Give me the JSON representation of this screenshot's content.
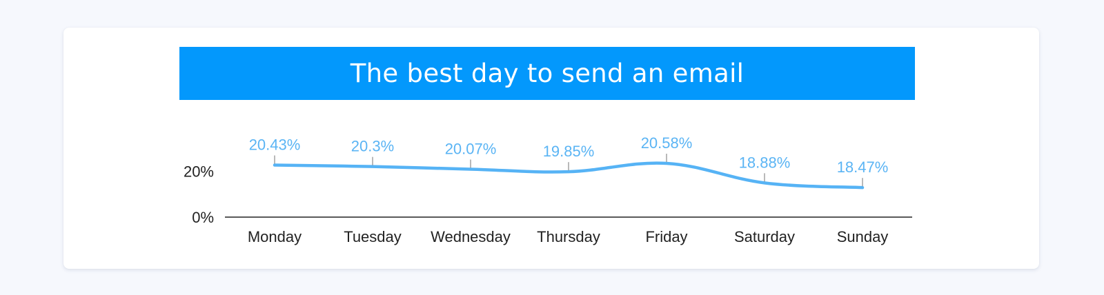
{
  "colors": {
    "banner": "#0398fc",
    "series": "#56b3f5",
    "label": "#5ab4f4",
    "axis": "#222222"
  },
  "chart_data": {
    "type": "line",
    "title": "The best day to send an email",
    "categories": [
      "Monday",
      "Tuesday",
      "Wednesday",
      "Thursday",
      "Friday",
      "Saturday",
      "Sunday"
    ],
    "series": [
      {
        "values": [
          20.43,
          20.3,
          20.07,
          19.85,
          20.58,
          18.88,
          18.47
        ],
        "data_labels": [
          "20.43%",
          "20.3%",
          "20.07%",
          "19.85%",
          "20.58%",
          "18.88%",
          "18.47%"
        ]
      }
    ],
    "y_tick_labels": [
      "0%",
      "20%"
    ],
    "grid": false,
    "smooth": true
  }
}
